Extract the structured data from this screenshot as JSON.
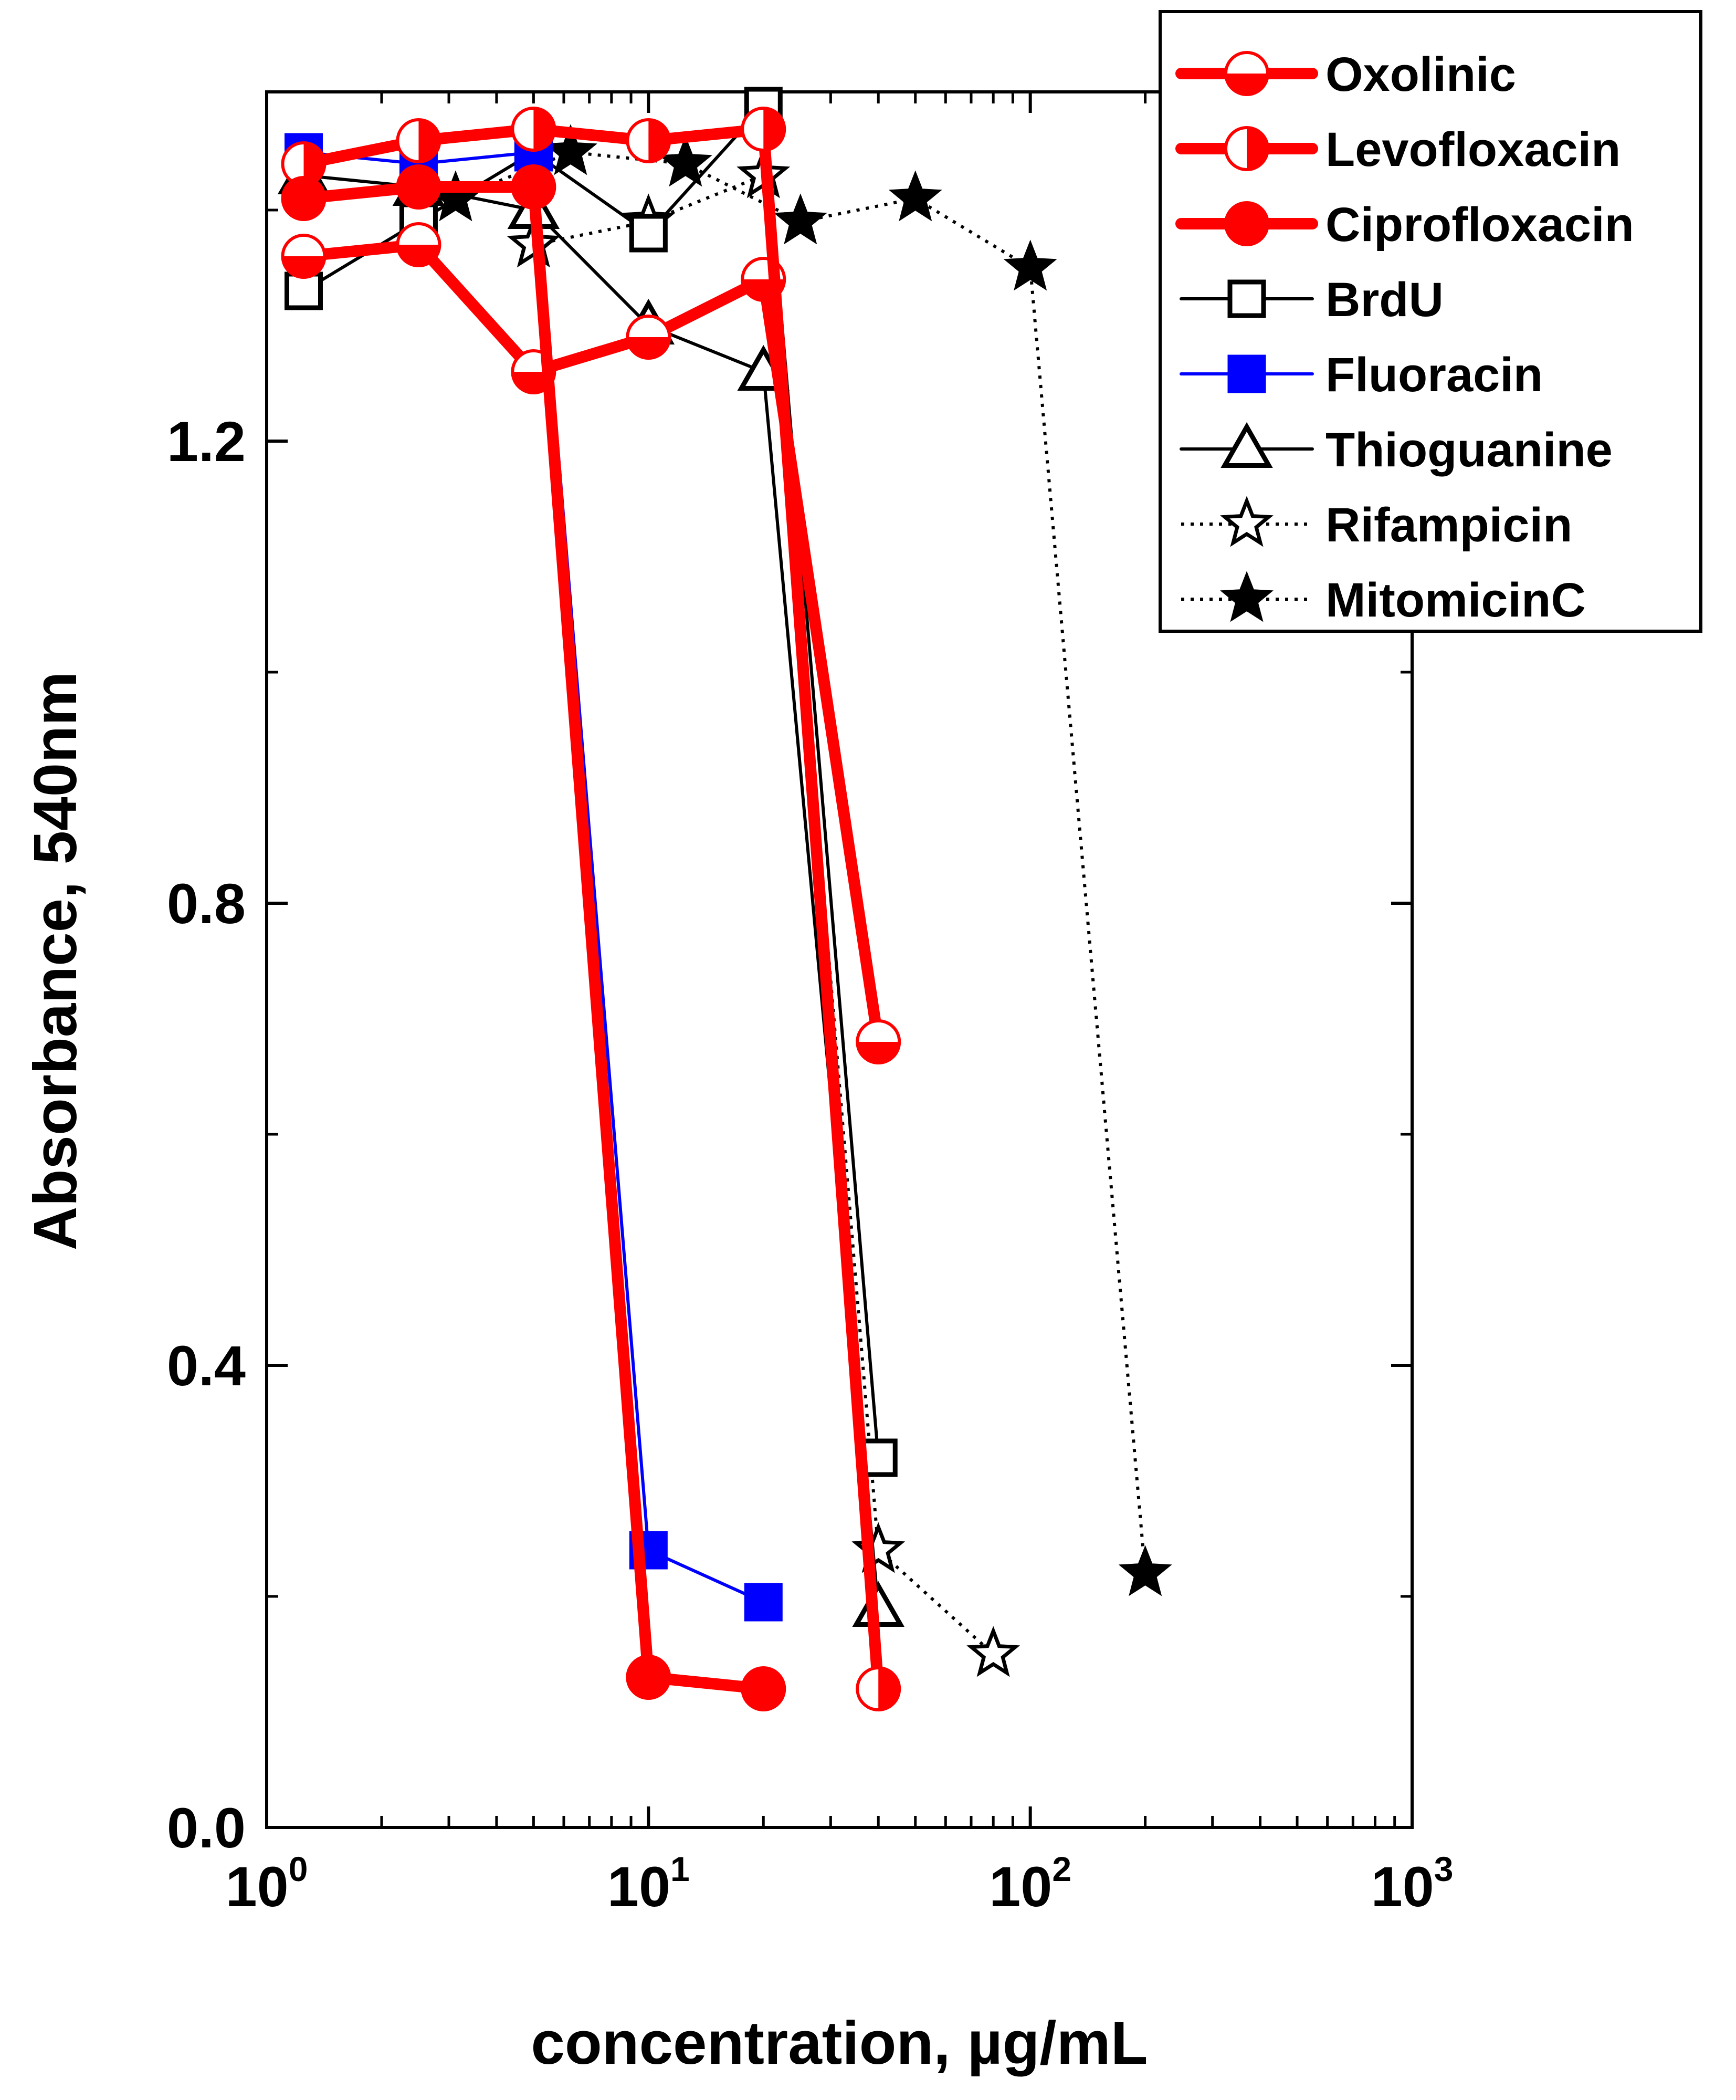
{
  "chart_data": {
    "type": "line",
    "title": "",
    "xlabel": "concentration, µg/mL",
    "ylabel": "Absorbance, 540nm",
    "xscale": "log",
    "xlim": [
      1,
      1000
    ],
    "ylim": [
      0,
      1.5
    ],
    "x_ticks": [
      {
        "value": 1,
        "base": "10",
        "exp": "0"
      },
      {
        "value": 10,
        "base": "10",
        "exp": "1"
      },
      {
        "value": 100,
        "base": "10",
        "exp": "2"
      },
      {
        "value": 1000,
        "base": "10",
        "exp": "3"
      }
    ],
    "y_ticks": [
      {
        "value": 0.0,
        "label": "0.0"
      },
      {
        "value": 0.4,
        "label": "0.4"
      },
      {
        "value": 0.8,
        "label": "0.8"
      },
      {
        "value": 1.2,
        "label": "1.2"
      }
    ],
    "y_minor_ticks": [
      0.2,
      0.6,
      1.0,
      1.4
    ],
    "grid": false,
    "legend_position": "top-right",
    "series": [
      {
        "name": "Oxolinic",
        "color": "#ff0000",
        "line_style": "solid",
        "line_weight": "thick",
        "marker": "circle",
        "fill": "top-open-bottom-filled",
        "x": [
          1.25,
          2.5,
          5,
          10,
          20,
          40
        ],
        "y": [
          1.36,
          1.37,
          1.26,
          1.29,
          1.34,
          0.68
        ]
      },
      {
        "name": "Levofloxacin",
        "color": "#ff0000",
        "line_style": "solid",
        "line_weight": "thick",
        "marker": "circle",
        "fill": "left-open-right-filled",
        "x": [
          1.25,
          2.5,
          5,
          10,
          20,
          40
        ],
        "y": [
          1.44,
          1.46,
          1.47,
          1.46,
          1.47,
          0.12
        ]
      },
      {
        "name": "Ciprofloxacin",
        "color": "#ff0000",
        "line_style": "solid",
        "line_weight": "thick",
        "marker": "circle",
        "fill": "filled",
        "x": [
          1.25,
          2.5,
          5,
          10,
          20
        ],
        "y": [
          1.41,
          1.42,
          1.42,
          0.13,
          0.12
        ]
      },
      {
        "name": "BrdU",
        "color": "#000000",
        "line_style": "solid",
        "line_weight": "normal",
        "marker": "square",
        "fill": "open",
        "x": [
          1.25,
          2.5,
          5,
          10,
          20,
          40
        ],
        "y": [
          1.33,
          1.39,
          1.45,
          1.38,
          1.49,
          0.32
        ]
      },
      {
        "name": "Fluoracin",
        "color": "#0000ff",
        "line_style": "solid",
        "line_weight": "normal",
        "marker": "square",
        "fill": "filled",
        "x": [
          1.25,
          2.5,
          5,
          10,
          20
        ],
        "y": [
          1.45,
          1.44,
          1.45,
          0.24,
          0.195
        ]
      },
      {
        "name": "Thioguanine",
        "color": "#000000",
        "line_style": "solid",
        "line_weight": "normal",
        "marker": "triangle",
        "fill": "open",
        "x": [
          1.25,
          2.5,
          5,
          10,
          20,
          40
        ],
        "y": [
          1.43,
          1.42,
          1.4,
          1.3,
          1.26,
          0.19
        ]
      },
      {
        "name": "Rifampicin",
        "color": "#000000",
        "line_style": "dotted",
        "line_weight": "normal",
        "marker": "star",
        "fill": "open",
        "x": [
          5,
          10,
          20,
          40,
          80
        ],
        "y": [
          1.37,
          1.39,
          1.43,
          0.24,
          0.15
        ]
      },
      {
        "name": "MitomicinC",
        "color": "#000000",
        "line_style": "dotted",
        "line_weight": "normal",
        "marker": "star",
        "fill": "filled",
        "x": [
          3.125,
          6.25,
          12.5,
          25,
          50,
          100,
          200
        ],
        "y": [
          1.41,
          1.45,
          1.44,
          1.39,
          1.41,
          1.35,
          0.22
        ]
      }
    ]
  }
}
